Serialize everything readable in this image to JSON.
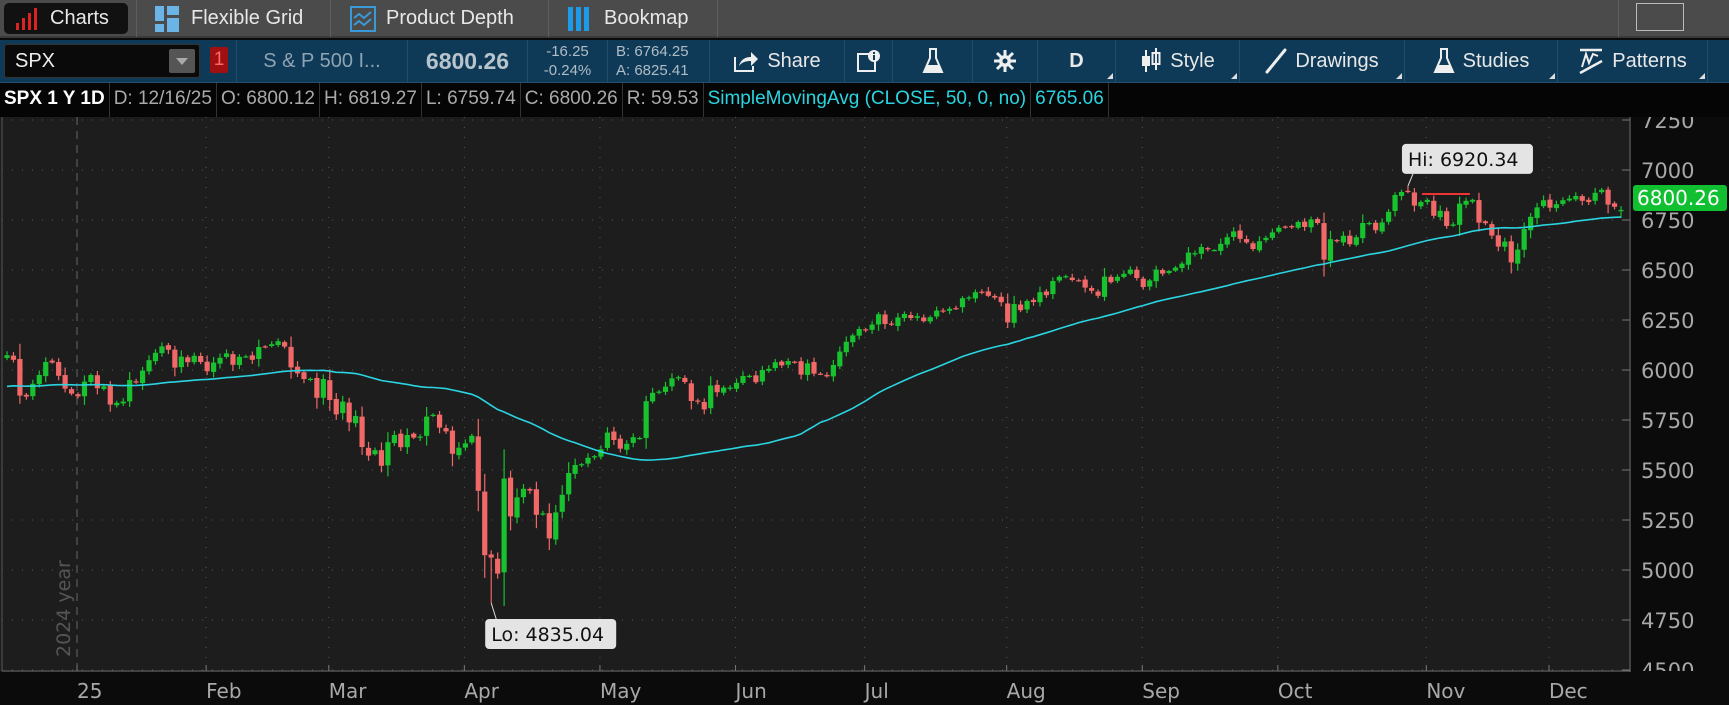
{
  "tabs": [
    {
      "label": "Charts",
      "icon": "bar-chart-icon",
      "active": true
    },
    {
      "label": "Flexible Grid",
      "icon": "grid-icon"
    },
    {
      "label": "Product Depth",
      "icon": "depth-icon"
    },
    {
      "label": "Bookmap",
      "icon": "bookmap-icon"
    }
  ],
  "toolbar": {
    "symbol": "SPX",
    "link_badge": "1",
    "description": "S & P 500 I...",
    "last": "6800.26",
    "change": "-16.25",
    "change_pct": "-0.24%",
    "bid": "B: 6764.25",
    "ask": "A: 6825.41",
    "share": "Share",
    "timeframe": "D",
    "style": "Style",
    "drawings": "Drawings",
    "studies": "Studies",
    "patterns": "Patterns"
  },
  "infobar": {
    "title": "SPX 1 Y 1D",
    "date": "D: 12/16/25",
    "open": "O: 6800.12",
    "high": "H: 6819.27",
    "low": "L: 6759.74",
    "close": "C: 6800.26",
    "range": "R: 59.53",
    "study": "SimpleMovingAvg (CLOSE, 50, 0, no)",
    "study_value": "6765.06"
  },
  "colors": {
    "up": "#17c22e",
    "down": "#f06868",
    "sma": "#2ad4e0",
    "price_badge": "#10c030",
    "toolbar": "#0e3a57"
  },
  "chart_data": {
    "type": "candlestick",
    "symbol": "SPX",
    "period": "1 Y",
    "aggregation": "1D",
    "ylim": [
      4500,
      7250
    ],
    "yticks": [
      4500,
      4750,
      5000,
      5250,
      5500,
      5750,
      6000,
      6250,
      6500,
      6750,
      7000,
      7250
    ],
    "year_label": "2024 year",
    "last_bar": {
      "open": 6800.12,
      "high": 6819.27,
      "low": 6759.74,
      "close": 6800.26
    },
    "last_price_label": "6800.26",
    "sma_start": 5915,
    "annotations": {
      "high": {
        "label": "Hi: 6920.34",
        "value": 6920.34,
        "month": "Oct",
        "day_index": 20
      },
      "low": {
        "label": "Lo: 4835.04",
        "value": 4835.04,
        "month": "Apr",
        "day_index": 4
      }
    },
    "months": [
      {
        "label": "",
        "closes": [
          6074,
          6051,
          5872,
          5867,
          5931,
          5975,
          6040,
          6037,
          5971,
          5907,
          5882
        ]
      },
      {
        "label": "25",
        "closes": [
          5868,
          5942,
          5975,
          5909,
          5918,
          5827,
          5836,
          5842,
          5950,
          5937,
          5997,
          6049,
          6086,
          6118,
          6101,
          6012,
          6067,
          6039,
          6071,
          6040
        ]
      },
      {
        "label": "Feb",
        "closes": [
          5994,
          6037,
          6061,
          6083,
          6026,
          6066,
          6068,
          6051,
          6115,
          6114,
          6129,
          6144,
          6117,
          6013,
          5983,
          5955,
          5956,
          5861,
          5955
        ]
      },
      {
        "label": "Mar",
        "closes": [
          5850,
          5778,
          5842,
          5738,
          5770,
          5615,
          5572,
          5599,
          5521,
          5639,
          5675,
          5614,
          5675,
          5662,
          5667,
          5767,
          5776,
          5712,
          5693,
          5581,
          5611
        ]
      },
      {
        "label": "Apr",
        "closes": [
          5633,
          5671,
          5396,
          5074,
          5062,
          4982,
          5457,
          5268,
          5363,
          5406,
          5397,
          5276,
          5283,
          5158,
          5288,
          5376,
          5485,
          5525,
          5529,
          5561,
          5569
        ]
      },
      {
        "label": "May",
        "closes": [
          5604,
          5687,
          5650,
          5607,
          5631,
          5664,
          5660,
          5844,
          5886,
          5892,
          5917,
          5958,
          5964,
          5940,
          5845,
          5842,
          5803,
          5922,
          5889,
          5912,
          5912
        ]
      },
      {
        "label": "Jun",
        "closes": [
          5936,
          5970,
          5971,
          5939,
          6000,
          6006,
          6039,
          6023,
          6045,
          6041,
          5977,
          6033,
          5982,
          5981,
          5968,
          6025,
          6092,
          6141,
          6173,
          6205
        ]
      },
      {
        "label": "Jul",
        "closes": [
          6198,
          6227,
          6279,
          6230,
          6226,
          6263,
          6280,
          6260,
          6269,
          6244,
          6264,
          6297,
          6297,
          6306,
          6309,
          6359,
          6363,
          6389,
          6390,
          6371,
          6362,
          6339
        ]
      },
      {
        "label": "Aug",
        "closes": [
          6238,
          6330,
          6299,
          6345,
          6340,
          6389,
          6374,
          6445,
          6466,
          6469,
          6450,
          6449,
          6412,
          6396,
          6371,
          6467,
          6439,
          6466,
          6481,
          6502,
          6460
        ]
      },
      {
        "label": "Sep",
        "closes": [
          6415,
          6448,
          6502,
          6482,
          6495,
          6512,
          6532,
          6587,
          6584,
          6615,
          6606,
          6600,
          6631,
          6664,
          6693,
          6656,
          6638,
          6605,
          6644,
          6661,
          6688
        ]
      },
      {
        "label": "Oct",
        "closes": [
          6711,
          6715,
          6716,
          6740,
          6715,
          6753,
          6735,
          6552,
          6654,
          6644,
          6671,
          6629,
          6664,
          6735,
          6735,
          6699,
          6738,
          6791,
          6875,
          6890,
          6890,
          6822,
          6840
        ]
      },
      {
        "label": "Nov",
        "closes": [
          6851,
          6771,
          6796,
          6720,
          6728,
          6832,
          6846,
          6851,
          6737,
          6734,
          6672,
          6617,
          6642,
          6538,
          6602,
          6705,
          6766,
          6813,
          6849
        ]
      },
      {
        "label": "Dec",
        "closes": [
          6812,
          6829,
          6849,
          6857,
          6870,
          6846,
          6840,
          6886,
          6901,
          6827,
          6816,
          6800.26
        ]
      }
    ]
  }
}
